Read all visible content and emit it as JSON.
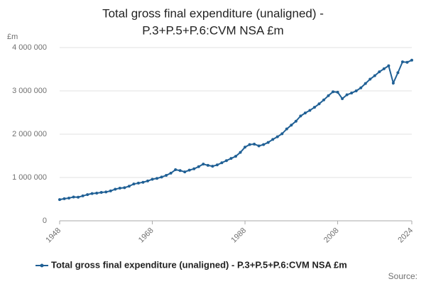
{
  "chart_data": {
    "type": "line",
    "title": [
      "Total gross final expenditure (unaligned) -",
      "P.3+P.5+P.6:CVM NSA £m"
    ],
    "y_unit": "£m",
    "source": "Source:",
    "x": [
      1948,
      1949,
      1950,
      1951,
      1952,
      1953,
      1954,
      1955,
      1956,
      1957,
      1958,
      1959,
      1960,
      1961,
      1962,
      1963,
      1964,
      1965,
      1966,
      1967,
      1968,
      1969,
      1970,
      1971,
      1972,
      1973,
      1974,
      1975,
      1976,
      1977,
      1978,
      1979,
      1980,
      1981,
      1982,
      1983,
      1984,
      1985,
      1986,
      1987,
      1988,
      1989,
      1990,
      1991,
      1992,
      1993,
      1994,
      1995,
      1996,
      1997,
      1998,
      1999,
      2000,
      2001,
      2002,
      2003,
      2004,
      2005,
      2006,
      2007,
      2008,
      2009,
      2010,
      2011,
      2012,
      2013,
      2014,
      2015,
      2016,
      2017,
      2018,
      2019,
      2020,
      2021,
      2022,
      2023,
      2024
    ],
    "series": [
      {
        "name": "Total gross final expenditure (unaligned) - P.3+P.5+P.6:CVM NSA £m",
        "color": "#206095",
        "values": [
          490000,
          510000,
          525000,
          550000,
          545000,
          575000,
          605000,
          630000,
          640000,
          655000,
          665000,
          690000,
          730000,
          755000,
          765000,
          800000,
          850000,
          870000,
          890000,
          920000,
          960000,
          980000,
          1010000,
          1050000,
          1100000,
          1180000,
          1160000,
          1130000,
          1170000,
          1200000,
          1250000,
          1310000,
          1280000,
          1260000,
          1290000,
          1340000,
          1390000,
          1440000,
          1490000,
          1580000,
          1700000,
          1760000,
          1770000,
          1730000,
          1760000,
          1810000,
          1880000,
          1940000,
          2010000,
          2120000,
          2210000,
          2300000,
          2420000,
          2490000,
          2550000,
          2620000,
          2700000,
          2790000,
          2890000,
          2980000,
          2970000,
          2820000,
          2910000,
          2950000,
          3000000,
          3070000,
          3170000,
          3270000,
          3350000,
          3440000,
          3510000,
          3580000,
          3180000,
          3420000,
          3670000,
          3660000,
          3710000
        ]
      }
    ],
    "xlim": [
      1948,
      2024
    ],
    "xticks": [
      1948,
      1968,
      1988,
      2008,
      2024
    ],
    "ylim": [
      0,
      4000000
    ],
    "yticks": [
      0,
      {
        "value": 1000000,
        "label": "1 000 000"
      },
      {
        "value": 2000000,
        "label": "2 000 000"
      },
      {
        "value": 3000000,
        "label": "3 000 000"
      },
      {
        "value": 4000000,
        "label": "4 000 000"
      }
    ],
    "grid": true
  }
}
